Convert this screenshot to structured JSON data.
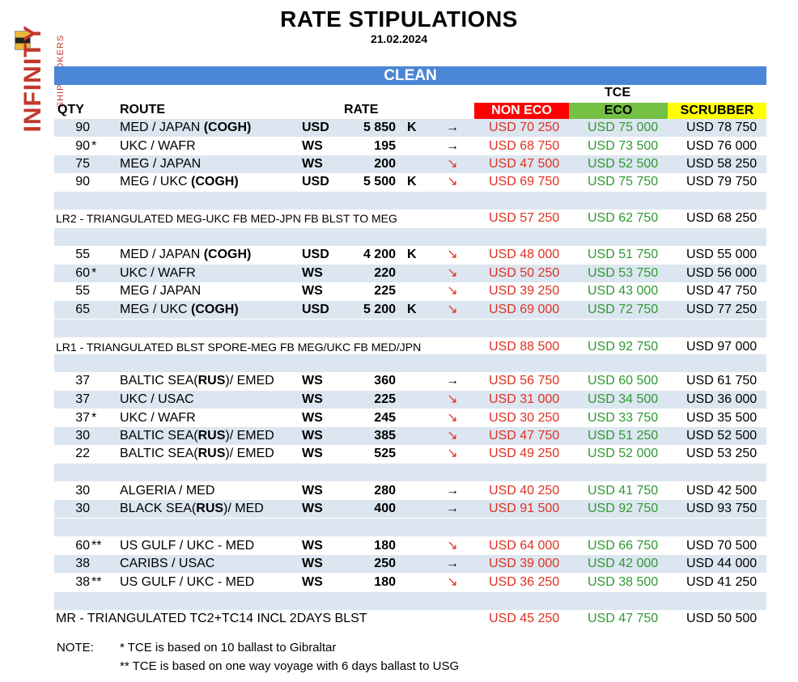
{
  "logo": {
    "brand": "INFINITY",
    "sub": "SHIPBROKERS"
  },
  "title": "RATE STIPULATIONS",
  "date": "21.02.2024",
  "section": "CLEAN",
  "headers": {
    "qty": "QTY",
    "route": "ROUTE",
    "rate": "RATE",
    "tce": "TCE",
    "non_eco": "NON ECO",
    "eco": "ECO",
    "scrubber": "SCRUBBER"
  },
  "rows": [
    {
      "qty": "90",
      "star": "",
      "route": "MED / JAPAN ",
      "route_bold": "(COGH)",
      "route_tail": "",
      "cur": "USD",
      "rate": "5 850",
      "unit": "K",
      "arrow": "→",
      "down": false,
      "ne": "USD 70 250",
      "ec": "USD 75 000",
      "sc": "USD 78 750"
    },
    {
      "qty": "90",
      "star": "*",
      "route": "UKC / WAFR",
      "route_bold": "",
      "route_tail": "",
      "cur": "WS",
      "rate": "195",
      "unit": "",
      "arrow": "→",
      "down": false,
      "ne": "USD 68 750",
      "ec": "USD 73 500",
      "sc": "USD 76 000"
    },
    {
      "qty": "75",
      "star": "",
      "route": "MEG / JAPAN",
      "route_bold": "",
      "route_tail": "",
      "cur": "WS",
      "rate": "200",
      "unit": "",
      "arrow": "↘",
      "down": true,
      "ne": "USD 47 500",
      "ec": "USD 52 500",
      "sc": "USD 58 250"
    },
    {
      "qty": "90",
      "star": "",
      "route": "MEG / UKC ",
      "route_bold": "(COGH)",
      "route_tail": "",
      "cur": "USD",
      "rate": "5 500",
      "unit": "K",
      "arrow": "↘",
      "down": true,
      "ne": "USD 69 750",
      "ec": "USD 75 750",
      "sc": "USD 79 750"
    },
    {
      "tri": "LR2 - TRIANGULATED MEG-UKC FB MED-JPN FB BLST TO MEG",
      "ne": "USD 57 250",
      "ec": "USD 62 750",
      "sc": "USD 68 250"
    },
    {
      "qty": "55",
      "star": "",
      "route": "MED / JAPAN ",
      "route_bold": "(COGH)",
      "route_tail": "",
      "cur": "USD",
      "rate": "4 200",
      "unit": "K",
      "arrow": "↘",
      "down": true,
      "ne": "USD 48 000",
      "ec": "USD 51 750",
      "sc": "USD 55 000"
    },
    {
      "qty": "60",
      "star": "*",
      "route": "UKC / WAFR",
      "route_bold": "",
      "route_tail": "",
      "cur": "WS",
      "rate": "220",
      "unit": "",
      "arrow": "↘",
      "down": true,
      "ne": "USD 50 250",
      "ec": "USD 53 750",
      "sc": "USD 56 000"
    },
    {
      "qty": "55",
      "star": "",
      "route": "MEG / JAPAN",
      "route_bold": "",
      "route_tail": "",
      "cur": "WS",
      "rate": "225",
      "unit": "",
      "arrow": "↘",
      "down": true,
      "ne": "USD 39 250",
      "ec": "USD 43 000",
      "sc": "USD 47 750"
    },
    {
      "qty": "65",
      "star": "",
      "route": "MEG / UKC ",
      "route_bold": "(COGH)",
      "route_tail": "",
      "cur": "USD",
      "rate": "5 200",
      "unit": "K",
      "arrow": "↘",
      "down": true,
      "ne": "USD 69 000",
      "ec": "USD 72 750",
      "sc": "USD 77 250"
    },
    {
      "tri": "LR1 - TRIANGULATED BLST SPORE-MEG FB MEG/UKC FB MED/JPN",
      "ne": "USD 88 500",
      "ec": "USD 92 750",
      "sc": "USD 97 000"
    },
    {
      "qty": "37",
      "star": "",
      "route": "BALTIC SEA(",
      "route_bold": "RUS",
      "route_tail": ")/ EMED",
      "cur": "WS",
      "rate": "360",
      "unit": "",
      "arrow": "→",
      "down": false,
      "ne": "USD 56 750",
      "ec": "USD 60 500",
      "sc": "USD 61 750"
    },
    {
      "qty": "37",
      "star": "",
      "route": "UKC / USAC",
      "route_bold": "",
      "route_tail": "",
      "cur": "WS",
      "rate": "225",
      "unit": "",
      "arrow": "↘",
      "down": true,
      "ne": "USD 31 000",
      "ec": "USD 34 500",
      "sc": "USD 36 000"
    },
    {
      "qty": "37",
      "star": "*",
      "route": "UKC / WAFR",
      "route_bold": "",
      "route_tail": "",
      "cur": "WS",
      "rate": "245",
      "unit": "",
      "arrow": "↘",
      "down": true,
      "ne": "USD 30 250",
      "ec": "USD 33 750",
      "sc": "USD 35 500"
    },
    {
      "qty": "30",
      "star": "",
      "route": "BALTIC SEA(",
      "route_bold": "RUS",
      "route_tail": ")/ EMED",
      "cur": "WS",
      "rate": "385",
      "unit": "",
      "arrow": "↘",
      "down": true,
      "ne": "USD 47 750",
      "ec": "USD 51 250",
      "sc": "USD 52 500"
    },
    {
      "qty": "22",
      "star": "",
      "route": "BALTIC SEA(",
      "route_bold": "RUS",
      "route_tail": ")/ EMED",
      "cur": "WS",
      "rate": "525",
      "unit": "",
      "arrow": "↘",
      "down": true,
      "ne": "USD 49 250",
      "ec": "USD 52 000",
      "sc": "USD 53 250"
    },
    {
      "qty": "30",
      "star": "",
      "route": "ALGERIA / MED",
      "route_bold": "",
      "route_tail": "",
      "cur": "WS",
      "rate": "280",
      "unit": "",
      "arrow": "→",
      "down": false,
      "ne": "USD 40 250",
      "ec": "USD 41 750",
      "sc": "USD 42 500"
    },
    {
      "qty": "30",
      "star": "",
      "route": "BLACK SEA(",
      "route_bold": "RUS",
      "route_tail": ")/ MED",
      "cur": "WS",
      "rate": "400",
      "unit": "",
      "arrow": "→",
      "down": false,
      "ne": "USD 91 500",
      "ec": "USD 92 750",
      "sc": "USD 93 750"
    },
    {
      "qty": "60",
      "star": "**",
      "route": "US GULF / UKC - MED",
      "route_bold": "",
      "route_tail": "",
      "cur": "WS",
      "rate": "180",
      "unit": "",
      "arrow": "↘",
      "down": true,
      "ne": "USD 64 000",
      "ec": "USD 66 750",
      "sc": "USD 70 500"
    },
    {
      "qty": "38",
      "star": "",
      "route": "CARIBS / USAC",
      "route_bold": "",
      "route_tail": "",
      "cur": "WS",
      "rate": "250",
      "unit": "",
      "arrow": "→",
      "down": false,
      "ne": "USD 39 000",
      "ec": "USD 42 000",
      "sc": "USD 44 000"
    },
    {
      "qty": "38",
      "star": "**",
      "route": "US GULF / UKC - MED",
      "route_bold": "",
      "route_tail": "",
      "cur": "WS",
      "rate": "180",
      "unit": "",
      "arrow": "↘",
      "down": true,
      "ne": "USD 36 250",
      "ec": "USD 38 500",
      "sc": "USD 41 250"
    },
    {
      "tri": "MR - TRIANGULATED TC2+TC14 INCL 2DAYS BLST",
      "ne": "USD 45 250",
      "ec": "USD 47 750",
      "sc": "USD 50 500"
    }
  ],
  "note": {
    "label": "NOTE:",
    "line1": "*  TCE is based on 10 ballast to Gibraltar",
    "line2": "** TCE is based on one way voyage with 6 days ballast to USG"
  }
}
